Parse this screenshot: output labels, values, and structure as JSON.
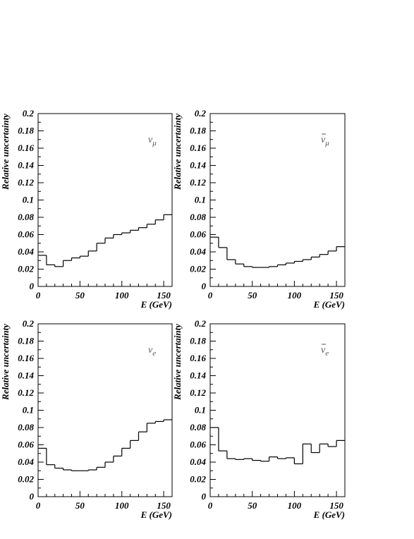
{
  "chart_data": [
    {
      "type": "line",
      "step": true,
      "label": "ν_μ",
      "label_main": "ν",
      "label_sub": "μ",
      "label_bar": false,
      "xlabel": "E (GeV)",
      "ylabel": "Relative uncertainty",
      "xlim": [
        0,
        160
      ],
      "ylim": [
        0,
        0.2
      ],
      "xticks": [
        0,
        50,
        100,
        150
      ],
      "xtick_labels": [
        "0",
        "50",
        "100",
        "150"
      ],
      "yticks": [
        0,
        0.02,
        0.04,
        0.06,
        0.08,
        0.1,
        0.12,
        0.14,
        0.16,
        0.18,
        0.2
      ],
      "ytick_labels": [
        "0",
        "0.02",
        "0.04",
        "0.06",
        "0.08",
        "0.1",
        "0.12",
        "0.14",
        "0.16",
        "0.18",
        "0.2"
      ],
      "bin_edges": [
        0,
        10,
        20,
        30,
        40,
        50,
        60,
        70,
        80,
        90,
        100,
        110,
        120,
        130,
        140,
        150,
        160
      ],
      "values": [
        0.036,
        0.025,
        0.023,
        0.03,
        0.033,
        0.035,
        0.041,
        0.05,
        0.056,
        0.06,
        0.062,
        0.065,
        0.068,
        0.072,
        0.077,
        0.083
      ]
    },
    {
      "type": "line",
      "step": true,
      "label": "ν̄_μ",
      "label_main": "ν",
      "label_sub": "μ",
      "label_bar": true,
      "xlabel": "E (GeV)",
      "ylabel": "Relative uncertainty",
      "xlim": [
        0,
        160
      ],
      "ylim": [
        0,
        0.2
      ],
      "xticks": [
        0,
        50,
        100,
        150
      ],
      "xtick_labels": [
        "0",
        "50",
        "100",
        "150"
      ],
      "yticks": [
        0,
        0.02,
        0.04,
        0.06,
        0.08,
        0.1,
        0.12,
        0.14,
        0.16,
        0.18,
        0.2
      ],
      "ytick_labels": [
        "0",
        "0.02",
        "0.04",
        "0.06",
        "0.08",
        "0.1",
        "0.12",
        "0.14",
        "0.16",
        "0.18",
        "0.2"
      ],
      "bin_edges": [
        0,
        10,
        20,
        30,
        40,
        50,
        60,
        70,
        80,
        90,
        100,
        110,
        120,
        130,
        140,
        150,
        160
      ],
      "values": [
        0.057,
        0.045,
        0.031,
        0.026,
        0.023,
        0.022,
        0.022,
        0.023,
        0.025,
        0.027,
        0.029,
        0.031,
        0.034,
        0.037,
        0.041,
        0.046
      ]
    },
    {
      "type": "line",
      "step": true,
      "label": "ν_e",
      "label_main": "ν",
      "label_sub": "e",
      "label_bar": false,
      "xlabel": "E (GeV)",
      "ylabel": "Relative uncertainty",
      "xlim": [
        0,
        160
      ],
      "ylim": [
        0,
        0.2
      ],
      "xticks": [
        0,
        50,
        100,
        150
      ],
      "xtick_labels": [
        "0",
        "50",
        "100",
        "150"
      ],
      "yticks": [
        0,
        0.02,
        0.04,
        0.06,
        0.08,
        0.1,
        0.12,
        0.14,
        0.16,
        0.18,
        0.2
      ],
      "ytick_labels": [
        "0",
        "0.02",
        "0.04",
        "0.06",
        "0.08",
        "0.1",
        "0.12",
        "0.14",
        "0.16",
        "0.18",
        "0.2"
      ],
      "bin_edges": [
        0,
        10,
        20,
        30,
        40,
        50,
        60,
        70,
        80,
        90,
        100,
        110,
        120,
        130,
        140,
        150,
        160
      ],
      "values": [
        0.056,
        0.037,
        0.033,
        0.031,
        0.03,
        0.03,
        0.031,
        0.034,
        0.04,
        0.047,
        0.056,
        0.065,
        0.075,
        0.085,
        0.087,
        0.089
      ]
    },
    {
      "type": "line",
      "step": true,
      "label": "ν̄_e",
      "label_main": "ν",
      "label_sub": "e",
      "label_bar": true,
      "xlabel": "E (GeV)",
      "ylabel": "Relative uncertainty",
      "xlim": [
        0,
        160
      ],
      "ylim": [
        0,
        0.2
      ],
      "xticks": [
        0,
        50,
        100,
        150
      ],
      "xtick_labels": [
        "0",
        "50",
        "100",
        "150"
      ],
      "yticks": [
        0,
        0.02,
        0.04,
        0.06,
        0.08,
        0.1,
        0.12,
        0.14,
        0.16,
        0.18,
        0.2
      ],
      "ytick_labels": [
        "0",
        "0.02",
        "0.04",
        "0.06",
        "0.08",
        "0.1",
        "0.12",
        "0.14",
        "0.16",
        "0.18",
        "0.2"
      ],
      "bin_edges": [
        0,
        10,
        20,
        30,
        40,
        50,
        60,
        70,
        80,
        90,
        100,
        110,
        120,
        130,
        140,
        150,
        160
      ],
      "values": [
        0.08,
        0.053,
        0.044,
        0.043,
        0.044,
        0.042,
        0.041,
        0.046,
        0.044,
        0.045,
        0.038,
        0.061,
        0.051,
        0.061,
        0.058,
        0.065
      ]
    }
  ]
}
